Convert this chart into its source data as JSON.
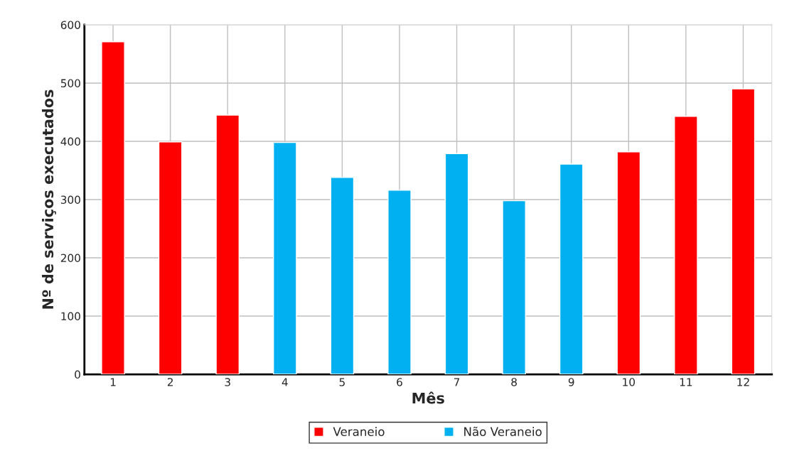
{
  "chart_data": {
    "type": "bar",
    "xlabel": "Mês",
    "ylabel": "Nº de serviços executados",
    "categories": [
      "1",
      "2",
      "3",
      "4",
      "5",
      "6",
      "7",
      "8",
      "9",
      "10",
      "11",
      "12"
    ],
    "series": [
      {
        "name": "Veraneio",
        "color": "#ff0000",
        "values": [
          571,
          399,
          445,
          null,
          null,
          null,
          null,
          null,
          null,
          382,
          443,
          490
        ]
      },
      {
        "name": "Não Veraneio",
        "color": "#00b0f0",
        "values": [
          null,
          null,
          null,
          398,
          338,
          316,
          379,
          298,
          361,
          null,
          null,
          null
        ]
      }
    ],
    "ylim": [
      0,
      600
    ],
    "yticks": [
      0,
      100,
      200,
      300,
      400,
      500,
      600
    ],
    "grid": true,
    "legend": "bottom"
  }
}
